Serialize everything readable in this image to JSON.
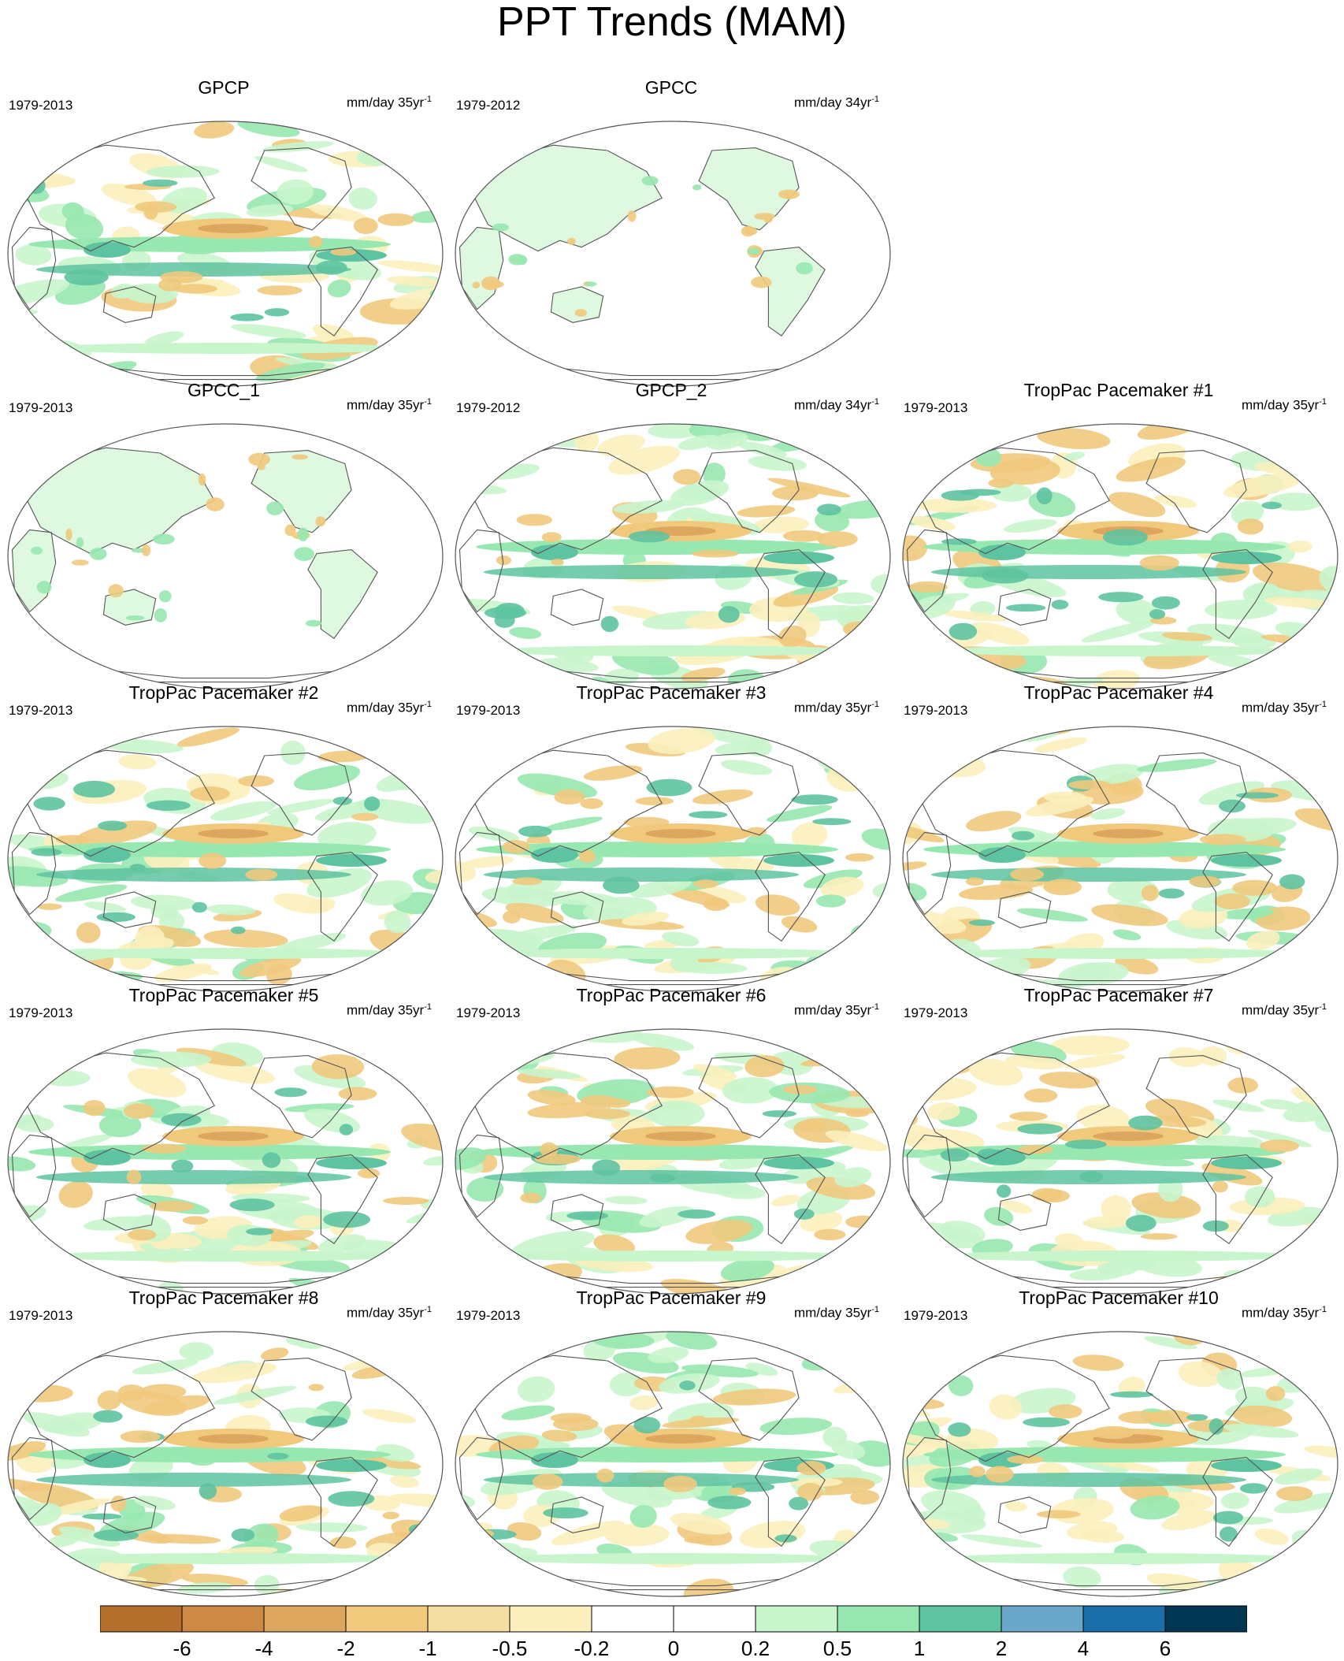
{
  "title": "PPT Trends (MAM)",
  "panels": [
    {
      "name": "GPCP",
      "period": "1979-2013",
      "units": "mm/day 35yr",
      "units_exp": "-1",
      "coverage": "global",
      "row": 0,
      "col": 0
    },
    {
      "name": "GPCC",
      "period": "1979-2012",
      "units": "mm/day 34yr",
      "units_exp": "-1",
      "coverage": "land",
      "row": 0,
      "col": 1
    },
    {
      "name": "GPCC_1",
      "period": "1979-2013",
      "units": "mm/day 35yr",
      "units_exp": "-1",
      "coverage": "land",
      "row": 1,
      "col": 0
    },
    {
      "name": "GPCP_2",
      "period": "1979-2012",
      "units": "mm/day 34yr",
      "units_exp": "-1",
      "coverage": "global",
      "row": 1,
      "col": 1
    },
    {
      "name": "TropPac Pacemaker #1",
      "period": "1979-2013",
      "units": "mm/day 35yr",
      "units_exp": "-1",
      "coverage": "global",
      "row": 1,
      "col": 2
    },
    {
      "name": "TropPac Pacemaker #2",
      "period": "1979-2013",
      "units": "mm/day 35yr",
      "units_exp": "-1",
      "coverage": "global",
      "row": 2,
      "col": 0
    },
    {
      "name": "TropPac Pacemaker #3",
      "period": "1979-2013",
      "units": "mm/day 35yr",
      "units_exp": "-1",
      "coverage": "global",
      "row": 2,
      "col": 1
    },
    {
      "name": "TropPac Pacemaker #4",
      "period": "1979-2013",
      "units": "mm/day 35yr",
      "units_exp": "-1",
      "coverage": "global",
      "row": 2,
      "col": 2
    },
    {
      "name": "TropPac Pacemaker #5",
      "period": "1979-2013",
      "units": "mm/day 35yr",
      "units_exp": "-1",
      "coverage": "global",
      "row": 3,
      "col": 0
    },
    {
      "name": "TropPac Pacemaker #6",
      "period": "1979-2013",
      "units": "mm/day 35yr",
      "units_exp": "-1",
      "coverage": "global",
      "row": 3,
      "col": 1
    },
    {
      "name": "TropPac Pacemaker #7",
      "period": "1979-2013",
      "units": "mm/day 35yr",
      "units_exp": "-1",
      "coverage": "global",
      "row": 3,
      "col": 2
    },
    {
      "name": "TropPac Pacemaker #8",
      "period": "1979-2013",
      "units": "mm/day 35yr",
      "units_exp": "-1",
      "coverage": "global",
      "row": 4,
      "col": 0
    },
    {
      "name": "TropPac Pacemaker #9",
      "period": "1979-2013",
      "units": "mm/day 35yr",
      "units_exp": "-1",
      "coverage": "global",
      "row": 4,
      "col": 1
    },
    {
      "name": "TropPac Pacemaker #10",
      "period": "1979-2013",
      "units": "mm/day 35yr",
      "units_exp": "-1",
      "coverage": "global",
      "row": 4,
      "col": 2
    }
  ],
  "colorbar": {
    "labels": [
      "-6",
      "-4",
      "-2",
      "-1",
      "-0.5",
      "-0.2",
      "0",
      "0.2",
      "0.5",
      "1",
      "2",
      "4",
      "6"
    ],
    "colors": [
      "#b5702d",
      "#cc8a45",
      "#dda65f",
      "#f0c97d",
      "#f4dea1",
      "#fbf0bd",
      "#ffffff",
      "#ffffff",
      "#c8f5cc",
      "#97e8b0",
      "#5ec3a0",
      "#6aa7c9",
      "#1a6eaa",
      "#003652"
    ]
  },
  "map_colors": {
    "ocean_background": "#ffffff",
    "coastline": "#555555",
    "dry_strong": "#dda65f",
    "dry": "#f0c97d",
    "dry_weak": "#fbf0bd",
    "wet_weak": "#c8f5cc",
    "wet": "#97e8b0",
    "wet_strong": "#5ec3a0",
    "wet_very_strong": "#6aa7c9",
    "wet_extreme": "#1a6eaa"
  }
}
